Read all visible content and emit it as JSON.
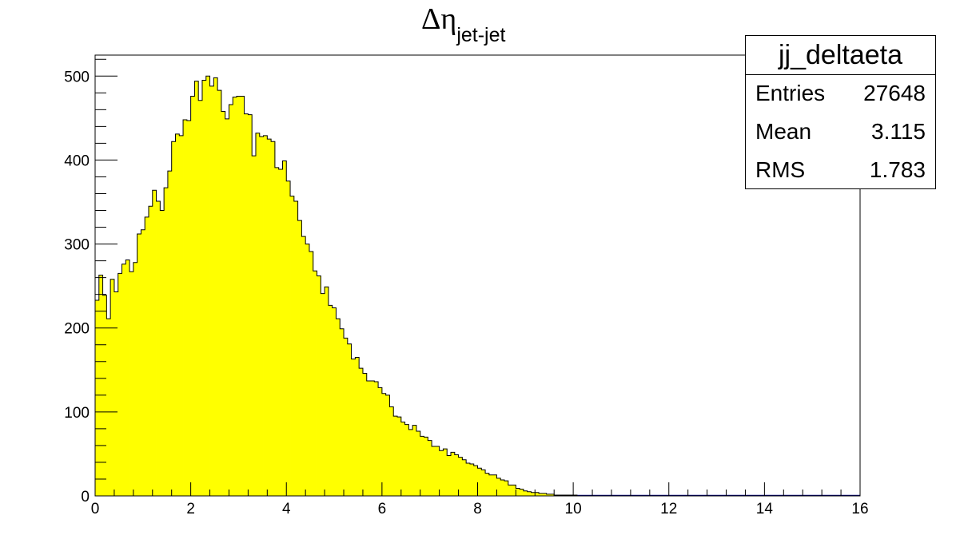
{
  "title": {
    "symbol": "Δη",
    "subscript": "jet-jet"
  },
  "stats": {
    "name": "jj_deltaeta",
    "rows": [
      {
        "label": "Entries",
        "value": "27648"
      },
      {
        "label": "Mean",
        "value": "3.115"
      },
      {
        "label": "RMS",
        "value": "1.783"
      }
    ]
  },
  "colors": {
    "fill": "#ffff00",
    "line": "#000000",
    "zero_line": "#000080"
  },
  "chart_data": {
    "type": "bar",
    "title": "Δη jet-jet",
    "xlabel": "",
    "ylabel": "",
    "xlim": [
      0,
      16
    ],
    "ylim": [
      0,
      525
    ],
    "bin_width": 0.08,
    "x_ticks": [
      "0",
      "2",
      "4",
      "6",
      "8",
      "10",
      "12",
      "14",
      "16"
    ],
    "y_ticks": [
      "0",
      "100",
      "200",
      "300",
      "400",
      "500"
    ],
    "grid": false,
    "values": [
      233,
      263,
      239,
      211,
      258,
      243,
      265,
      276,
      281,
      267,
      278,
      312,
      317,
      332,
      345,
      364,
      351,
      340,
      367,
      387,
      422,
      431,
      429,
      448,
      447,
      476,
      494,
      471,
      495,
      500,
      488,
      498,
      483,
      458,
      449,
      466,
      475,
      476,
      476,
      455,
      454,
      405,
      432,
      428,
      429,
      425,
      422,
      391,
      389,
      399,
      375,
      357,
      351,
      328,
      309,
      300,
      291,
      268,
      262,
      241,
      249,
      227,
      224,
      211,
      199,
      188,
      181,
      163,
      165,
      152,
      146,
      137,
      137,
      136,
      129,
      122,
      120,
      106,
      95,
      94,
      88,
      85,
      79,
      84,
      77,
      71,
      70,
      66,
      59,
      59,
      54,
      56,
      48,
      52,
      49,
      46,
      43,
      39,
      38,
      36,
      33,
      31,
      27,
      25,
      25,
      21,
      19,
      18,
      13,
      13,
      9,
      8,
      6,
      5,
      4,
      4,
      3,
      3,
      2,
      2,
      1,
      1,
      1,
      1,
      1,
      1,
      0,
      0,
      0,
      0,
      0,
      0,
      0,
      0,
      0,
      0,
      0,
      0,
      0,
      0,
      0,
      0,
      0,
      0,
      0,
      0,
      0,
      0,
      0,
      0,
      0,
      0,
      0,
      0,
      0,
      0,
      0,
      0,
      0,
      0,
      0,
      0,
      0,
      0,
      0,
      0,
      0,
      0,
      0,
      0,
      0,
      0,
      0,
      0,
      0,
      0,
      0,
      0,
      0,
      0,
      0,
      0,
      0,
      0,
      0,
      0,
      0,
      0,
      0,
      0,
      0,
      0,
      0,
      0,
      0,
      0
    ]
  }
}
